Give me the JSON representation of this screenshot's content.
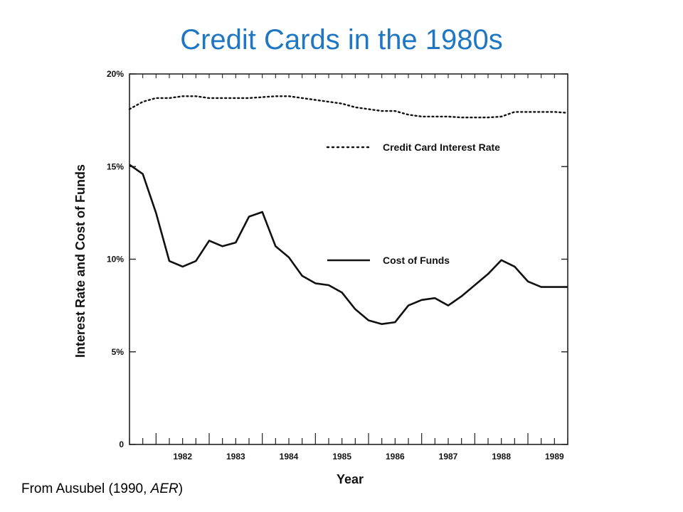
{
  "slide": {
    "title": "Credit Cards in the 1980s",
    "source_prefix": "From Ausubel (1990, ",
    "source_journal": "AER",
    "source_suffix": ")"
  },
  "chart_data": {
    "type": "line",
    "xlabel": "Year",
    "ylabel": "Interest Rate and Cost of Funds",
    "x_tick_labels": [
      "1982",
      "1983",
      "1984",
      "1985",
      "1986",
      "1987",
      "1988",
      "1989"
    ],
    "xlim": [
      1981.5,
      1989.75
    ],
    "y_ticks": [
      {
        "value": 0,
        "label": "0"
      },
      {
        "value": 5,
        "label": "5%"
      },
      {
        "value": 10,
        "label": "10%"
      },
      {
        "value": 15,
        "label": "15%"
      },
      {
        "value": 20,
        "label": "20%"
      }
    ],
    "ylim": [
      0,
      20
    ],
    "grid": false,
    "legend_position": "top-right",
    "series": [
      {
        "name": "Credit Card Interest Rate",
        "line_style": "dotted",
        "x": [
          1981.5,
          1981.75,
          1982.0,
          1982.25,
          1982.5,
          1982.75,
          1983.0,
          1983.25,
          1983.5,
          1983.75,
          1984.0,
          1984.25,
          1984.5,
          1984.75,
          1985.0,
          1985.25,
          1985.5,
          1985.75,
          1986.0,
          1986.25,
          1986.5,
          1986.75,
          1987.0,
          1987.25,
          1987.5,
          1987.75,
          1988.0,
          1988.25,
          1988.5,
          1988.75,
          1989.0,
          1989.25,
          1989.5,
          1989.75
        ],
        "y": [
          18.1,
          18.5,
          18.7,
          18.7,
          18.8,
          18.8,
          18.7,
          18.7,
          18.7,
          18.7,
          18.75,
          18.8,
          18.8,
          18.7,
          18.6,
          18.5,
          18.4,
          18.2,
          18.1,
          18.0,
          18.0,
          17.8,
          17.7,
          17.7,
          17.7,
          17.65,
          17.65,
          17.65,
          17.7,
          17.95,
          17.95,
          17.95,
          17.95,
          17.9
        ]
      },
      {
        "name": "Cost of Funds",
        "line_style": "solid",
        "x": [
          1981.5,
          1981.75,
          1982.0,
          1982.25,
          1982.5,
          1982.75,
          1983.0,
          1983.25,
          1983.5,
          1983.75,
          1984.0,
          1984.25,
          1984.5,
          1984.75,
          1985.0,
          1985.25,
          1985.5,
          1985.75,
          1986.0,
          1986.25,
          1986.5,
          1986.75,
          1987.0,
          1987.25,
          1987.5,
          1987.75,
          1988.0,
          1988.25,
          1988.5,
          1988.75,
          1989.0,
          1989.25,
          1989.5,
          1989.75
        ],
        "y": [
          15.1,
          14.6,
          12.5,
          9.9,
          9.6,
          9.9,
          11.0,
          10.7,
          10.9,
          12.3,
          12.55,
          10.7,
          10.1,
          9.1,
          8.7,
          8.6,
          8.2,
          7.3,
          6.7,
          6.5,
          6.6,
          7.5,
          7.8,
          7.9,
          7.5,
          8.0,
          8.6,
          9.2,
          9.95,
          9.6,
          8.8,
          8.5,
          8.5,
          8.5
        ]
      }
    ]
  }
}
